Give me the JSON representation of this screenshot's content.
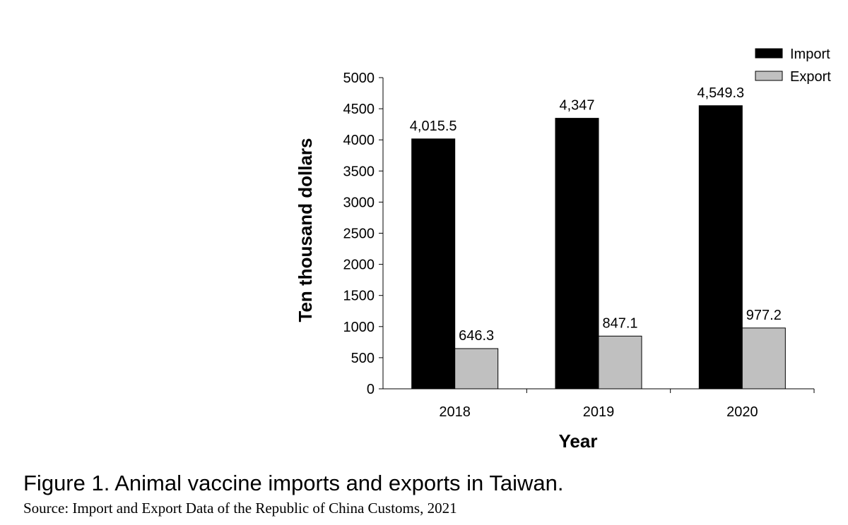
{
  "chart_data": {
    "type": "bar",
    "categories": [
      "2018",
      "2019",
      "2020"
    ],
    "series": [
      {
        "name": "Import",
        "values": [
          4015.5,
          4347,
          4549.3
        ],
        "labels": [
          "4,015.5",
          "4,347",
          "4,549.3"
        ],
        "color": "#000000"
      },
      {
        "name": "Export",
        "values": [
          646.3,
          847.1,
          977.2
        ],
        "labels": [
          "646.3",
          "847.1",
          "977.2"
        ],
        "color": "#c0c0c0"
      }
    ],
    "xlabel": "Year",
    "ylabel": "Ten thousand dollars",
    "ylim": [
      0,
      5000
    ],
    "yticks": [
      "0",
      "500",
      "1000",
      "1500",
      "2000",
      "2500",
      "3000",
      "3500",
      "4000",
      "4500",
      "5000"
    ],
    "grid": false,
    "legend_position": "top-right"
  },
  "caption": {
    "figure": "Figure 1. Animal vaccine imports and exports in Taiwan.",
    "source": "Source: Import and Export Data of the Republic of China Customs, 2021"
  }
}
